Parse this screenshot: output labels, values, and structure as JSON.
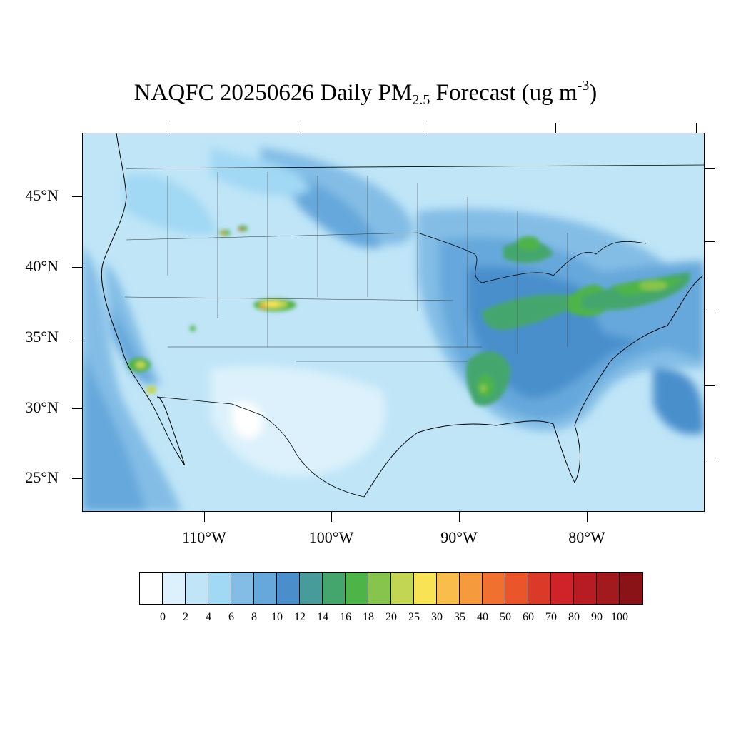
{
  "title": {
    "prefix": "NAQFC 20250626 Daily PM",
    "subscript": "2.5",
    "middle": " Forecast (ug m",
    "superscript": "-3",
    "suffix": ")"
  },
  "axes": {
    "lat_labels": [
      "45°N",
      "40°N",
      "35°N",
      "30°N",
      "25°N"
    ],
    "lon_labels": [
      "110°W",
      "100°W",
      "90°W",
      "80°W"
    ]
  },
  "colorbar": {
    "labels": [
      "0",
      "2",
      "4",
      "6",
      "8",
      "10",
      "12",
      "14",
      "16",
      "18",
      "20",
      "25",
      "30",
      "35",
      "40",
      "50",
      "60",
      "70",
      "80",
      "90",
      "100"
    ],
    "colors": [
      "#ffffff",
      "#dcf1fb",
      "#bfe5f7",
      "#a1d8f4",
      "#83bde6",
      "#66a8db",
      "#4a8fcc",
      "#479c99",
      "#45a66d",
      "#4db448",
      "#86c44e",
      "#c3d654",
      "#f7e354",
      "#f8bd4a",
      "#f69a3e",
      "#f07030",
      "#ea5629",
      "#dc3a28",
      "#cf2229",
      "#b81c23",
      "#a2191e",
      "#8a1318"
    ]
  },
  "map": {
    "ocean_color": "#bfe5f7",
    "hotspot_colors": [
      "#4db448",
      "#86c44e",
      "#c3d654",
      "#f7e354",
      "#f69a3e",
      "#dc3a28"
    ]
  }
}
